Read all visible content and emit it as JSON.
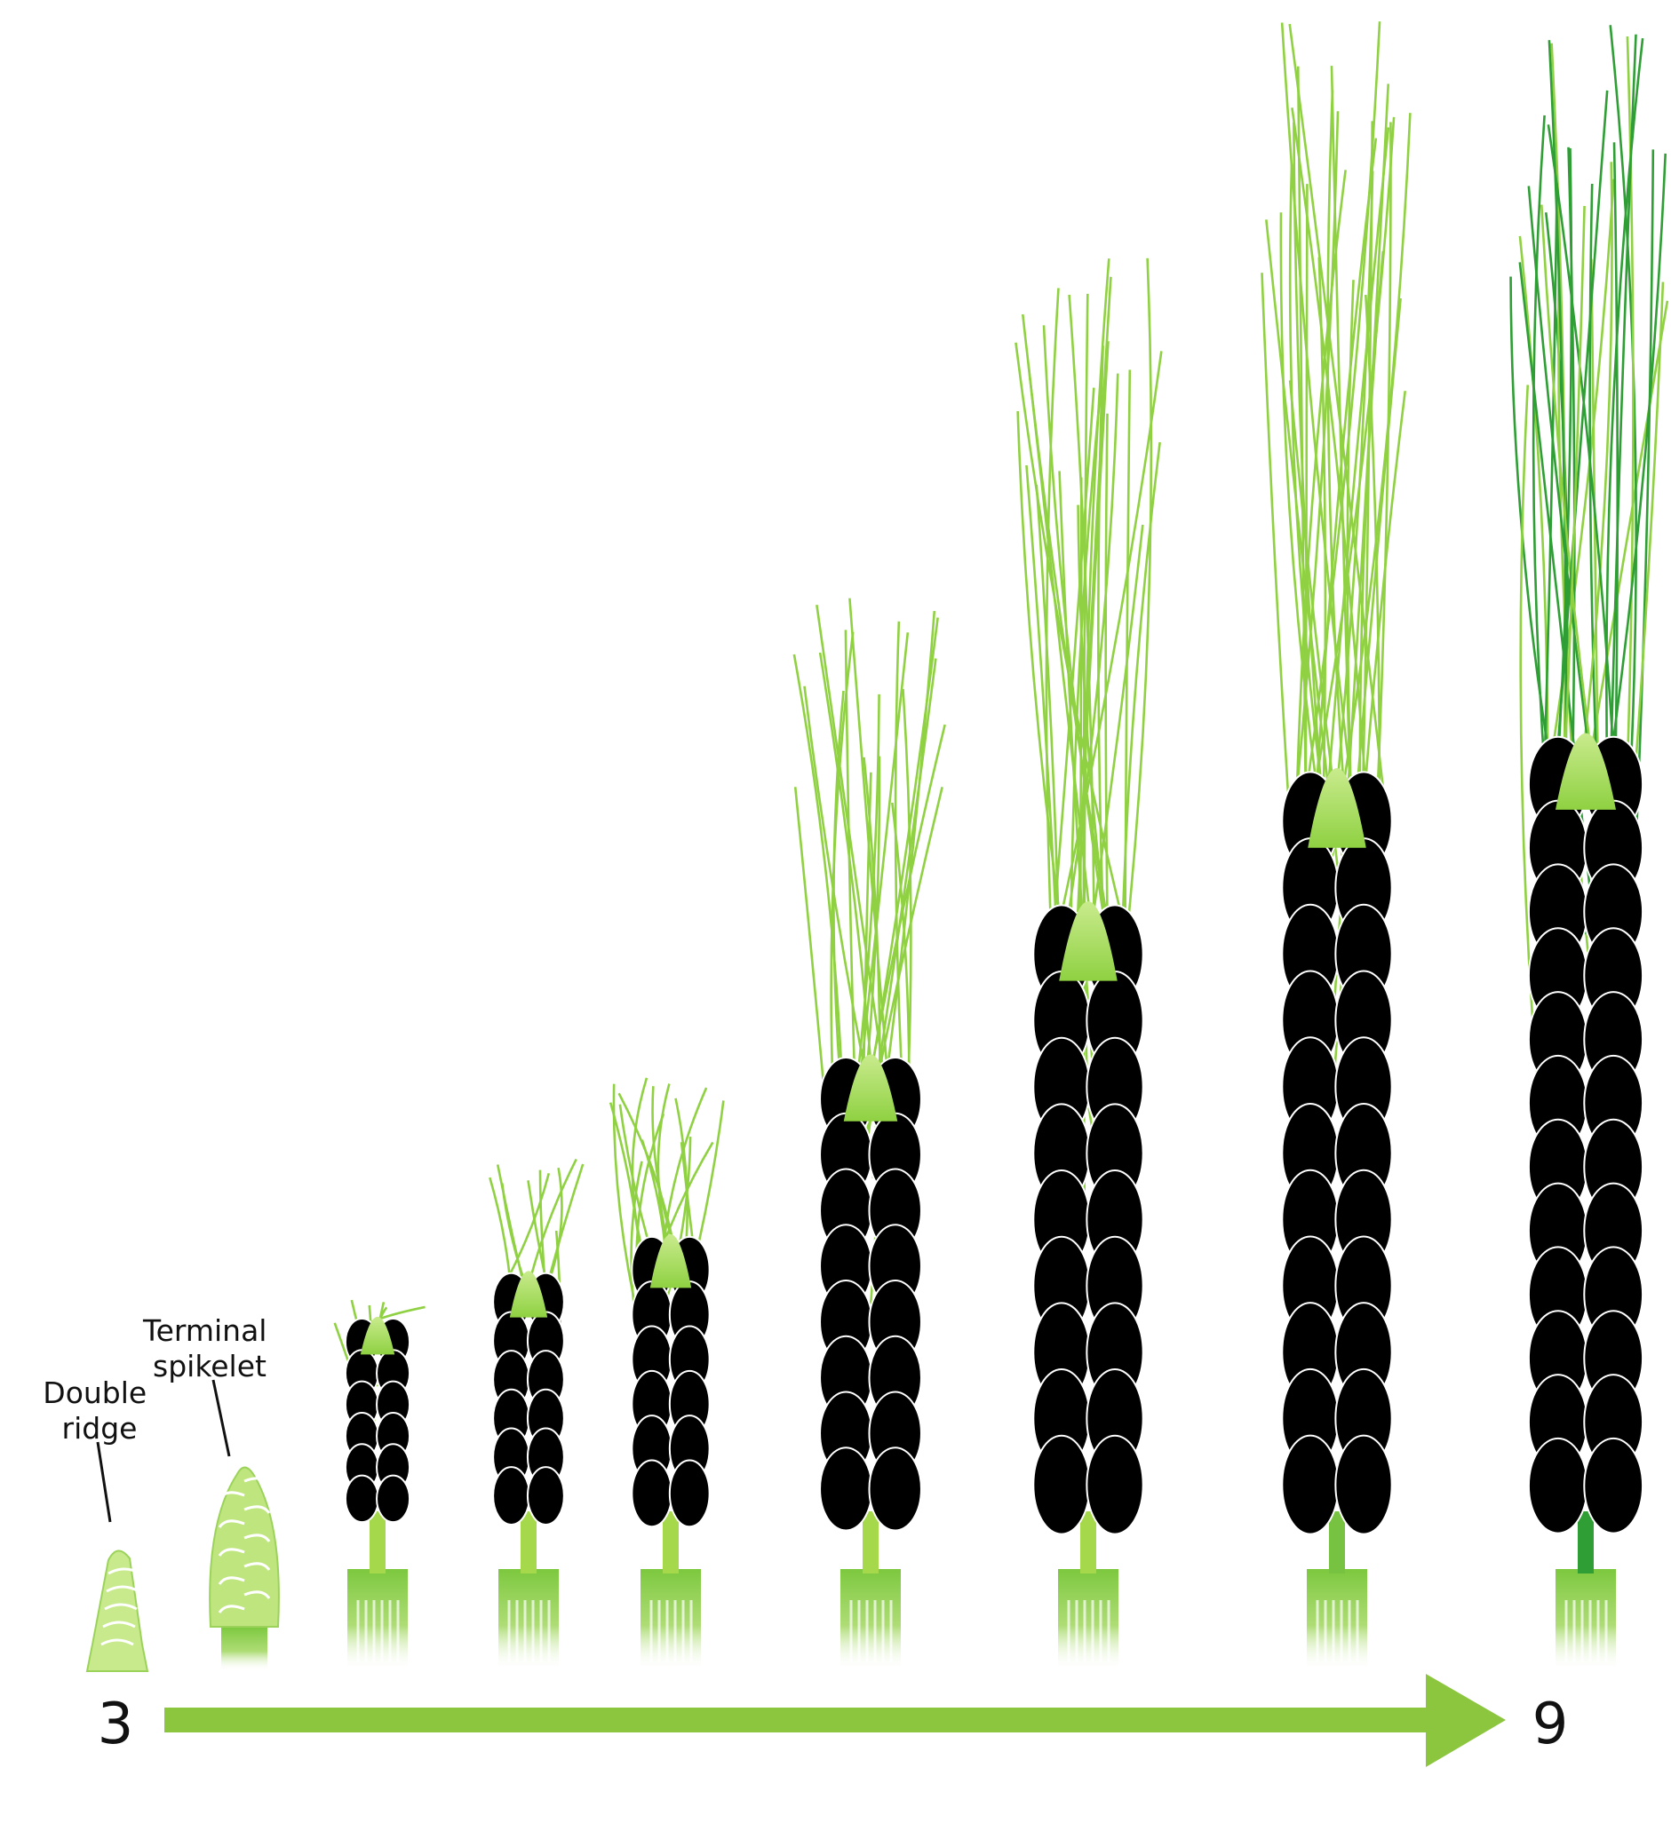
{
  "annotations": [
    {
      "id": "double-ridge",
      "lines": [
        "Double",
        "ridge"
      ]
    },
    {
      "id": "terminal-spikelet",
      "lines": [
        "Terminal",
        "spikelet"
      ]
    }
  ],
  "scale": {
    "start_label": "3",
    "end_label": "9"
  },
  "colors": {
    "arrow": "#8cc63f",
    "spike_light": "#eaf7cf",
    "spike_mid": "#a5d84a",
    "spike_dark": "#79c23a",
    "spike_deep": "#2e9e35",
    "awn": "#8fd142"
  },
  "spikes": [
    {
      "stage": 1,
      "type": "double-ridge",
      "awns": 0,
      "shade": 0.1
    },
    {
      "stage": 2,
      "type": "terminal-spikelet",
      "awns": 0,
      "shade": 0.15
    },
    {
      "stage": 3,
      "type": "spike",
      "awns": 6,
      "shade": 0.25
    },
    {
      "stage": 4,
      "type": "spike",
      "awns": 10,
      "shade": 0.3
    },
    {
      "stage": 5,
      "type": "spike",
      "awns": 16,
      "shade": 0.4
    },
    {
      "stage": 6,
      "type": "spike",
      "awns": 22,
      "shade": 0.5
    },
    {
      "stage": 7,
      "type": "spike",
      "awns": 26,
      "shade": 0.6
    },
    {
      "stage": 8,
      "type": "spike",
      "awns": 30,
      "shade": 0.75
    },
    {
      "stage": 9,
      "type": "spike",
      "awns": 30,
      "shade": 1.0
    }
  ]
}
